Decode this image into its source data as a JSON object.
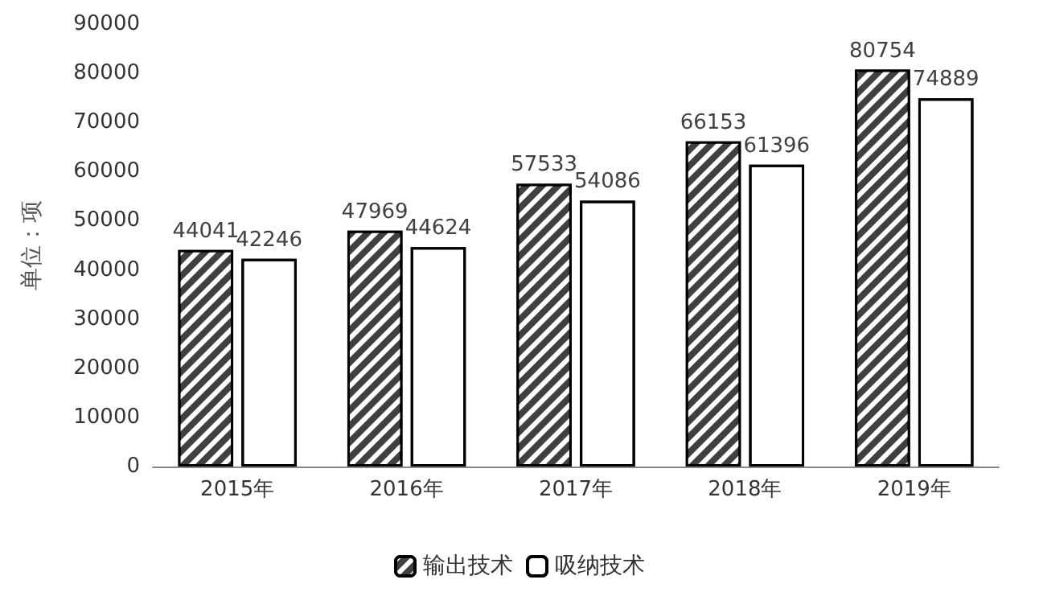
{
  "chart_data": {
    "type": "bar",
    "ylabel": "单位：项",
    "categories": [
      "2015年",
      "2016年",
      "2017年",
      "2018年",
      "2019年"
    ],
    "series": [
      {
        "name": "输出技术",
        "color": "#404040",
        "values": [
          44041,
          47969,
          57533,
          66153,
          80754
        ]
      },
      {
        "name": "吸纳技术",
        "color": "#ffffff",
        "values": [
          42246,
          44624,
          54086,
          61396,
          74889
        ]
      }
    ],
    "ylim": [
      0,
      90000
    ],
    "yticks": [
      0,
      10000,
      20000,
      30000,
      40000,
      50000,
      60000,
      70000,
      80000,
      90000
    ],
    "data_labels": true,
    "grid": false,
    "legend": "bottom"
  }
}
